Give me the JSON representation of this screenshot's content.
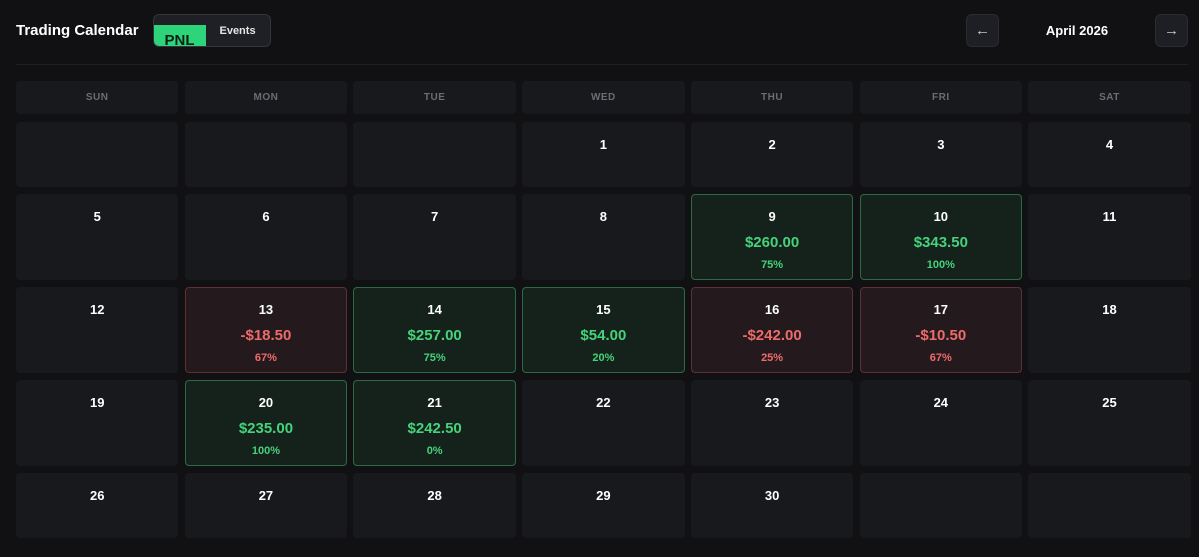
{
  "header": {
    "title": "Trading Calendar",
    "toggle": {
      "pnl_label": "PNL",
      "events_label": "Events",
      "active": "PNL"
    },
    "prev_icon": "left-arrow-icon",
    "next_icon": "right-arrow-icon",
    "prev_glyph": "←",
    "next_glyph": "→",
    "month": "April 2026"
  },
  "colors": {
    "background": "#111114",
    "accent": "#2ed47a",
    "profit": "#46d27a",
    "loss": "#ee6b6b"
  },
  "weekdays": [
    "SUN",
    "MON",
    "TUE",
    "WED",
    "THU",
    "FRI",
    "SAT"
  ],
  "weeks": [
    [
      {
        "day": ""
      },
      {
        "day": ""
      },
      {
        "day": ""
      },
      {
        "day": "1"
      },
      {
        "day": "2"
      },
      {
        "day": "3"
      },
      {
        "day": "4"
      }
    ],
    [
      {
        "day": "5"
      },
      {
        "day": "6"
      },
      {
        "day": "7"
      },
      {
        "day": "8"
      },
      {
        "day": "9",
        "pnl": "$260.00",
        "pct": "75%",
        "type": "profit"
      },
      {
        "day": "10",
        "pnl": "$343.50",
        "pct": "100%",
        "type": "profit"
      },
      {
        "day": "11"
      }
    ],
    [
      {
        "day": "12"
      },
      {
        "day": "13",
        "pnl": "-$18.50",
        "pct": "67%",
        "type": "loss"
      },
      {
        "day": "14",
        "pnl": "$257.00",
        "pct": "75%",
        "type": "profit"
      },
      {
        "day": "15",
        "pnl": "$54.00",
        "pct": "20%",
        "type": "profit"
      },
      {
        "day": "16",
        "pnl": "-$242.00",
        "pct": "25%",
        "type": "loss"
      },
      {
        "day": "17",
        "pnl": "-$10.50",
        "pct": "67%",
        "type": "loss"
      },
      {
        "day": "18"
      }
    ],
    [
      {
        "day": "19"
      },
      {
        "day": "20",
        "pnl": "$235.00",
        "pct": "100%",
        "type": "profit"
      },
      {
        "day": "21",
        "pnl": "$242.50",
        "pct": "0%",
        "type": "profit"
      },
      {
        "day": "22"
      },
      {
        "day": "23"
      },
      {
        "day": "24"
      },
      {
        "day": "25"
      }
    ],
    [
      {
        "day": "26"
      },
      {
        "day": "27"
      },
      {
        "day": "28"
      },
      {
        "day": "29"
      },
      {
        "day": "30"
      },
      {
        "day": ""
      },
      {
        "day": ""
      }
    ]
  ]
}
